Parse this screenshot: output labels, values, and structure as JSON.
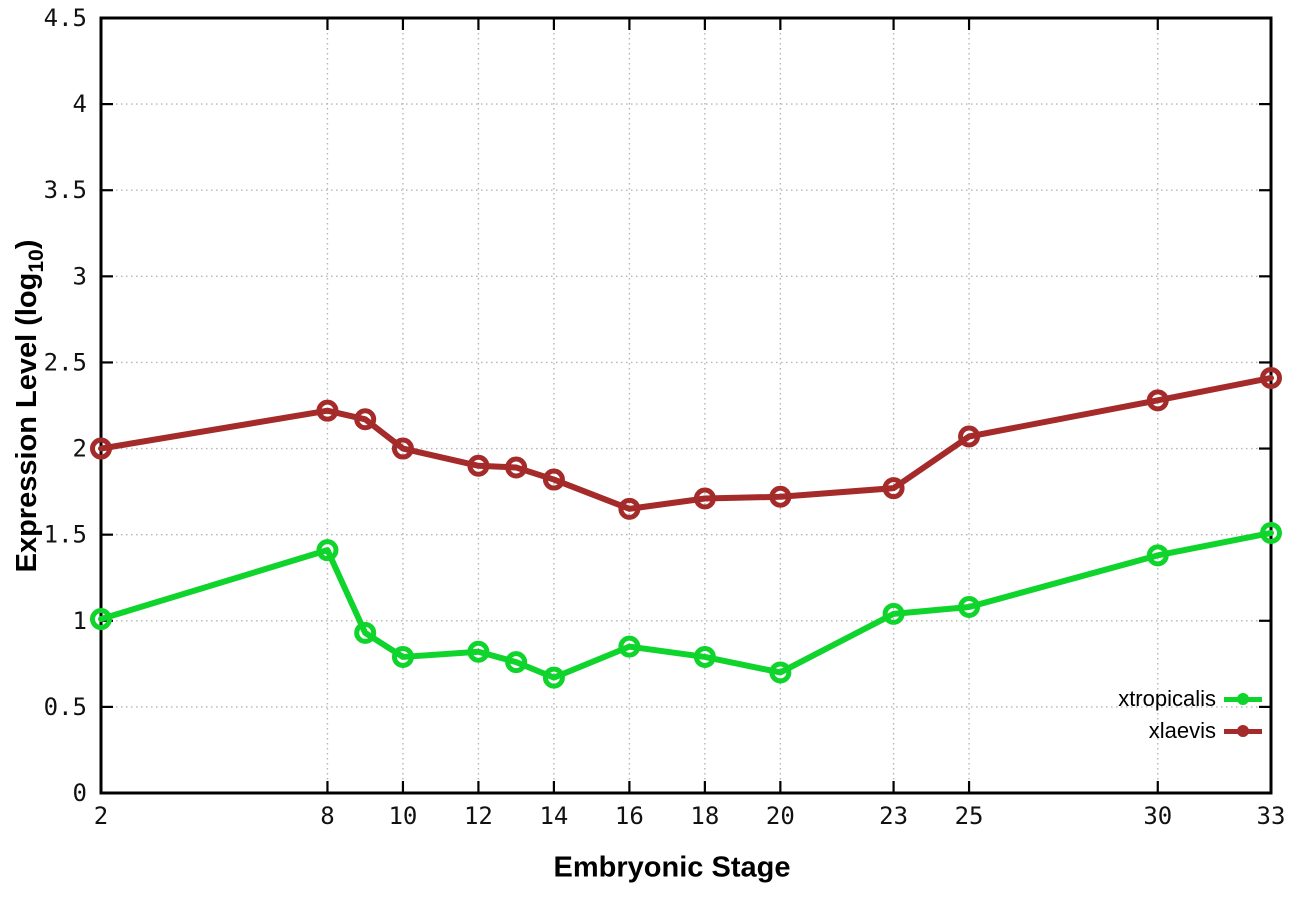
{
  "chart_data": {
    "type": "line",
    "title": "",
    "xlabel": "Embryonic Stage",
    "ylabel": {
      "pre": "Expression Level (log",
      "sub": "10",
      "post": ")"
    },
    "x": [
      2,
      8,
      9,
      10,
      12,
      13,
      14,
      16,
      18,
      20,
      23,
      25,
      30,
      33
    ],
    "x_ticks": [
      2,
      8,
      10,
      12,
      14,
      16,
      18,
      20,
      23,
      25,
      30,
      33
    ],
    "x_tick_labels": [
      "2",
      "8",
      "10",
      "12",
      "14",
      "16",
      "18",
      "20",
      "23",
      "25",
      "30",
      "33"
    ],
    "y_ticks": [
      0,
      0.5,
      1,
      1.5,
      2,
      2.5,
      3,
      3.5,
      4,
      4.5
    ],
    "y_tick_labels": [
      "0",
      "0.5",
      "1",
      "1.5",
      "2",
      "2.5",
      "3",
      "3.5",
      "4",
      "4.5"
    ],
    "xlim": [
      2,
      33
    ],
    "ylim": [
      0,
      4.5
    ],
    "grid": true,
    "grid_style": "dotted",
    "legend_position": "inside-bottom-right",
    "series": [
      {
        "name": "xtropicalis",
        "color": "#0ed42c",
        "marker": "open-circle",
        "values": [
          1.01,
          1.41,
          0.93,
          0.79,
          0.82,
          0.76,
          0.67,
          0.85,
          0.79,
          0.7,
          1.04,
          1.08,
          1.38,
          1.51
        ]
      },
      {
        "name": "xlaevis",
        "color": "#a52a2a",
        "marker": "open-circle",
        "values": [
          2.0,
          2.22,
          2.17,
          2.0,
          1.9,
          1.89,
          1.82,
          1.65,
          1.71,
          1.72,
          1.77,
          2.07,
          2.28,
          2.41
        ]
      }
    ],
    "colors": {
      "background": "#ffffff",
      "axis": "#000000",
      "grid": "#b5b5b5",
      "tick_text": "#111111"
    }
  }
}
